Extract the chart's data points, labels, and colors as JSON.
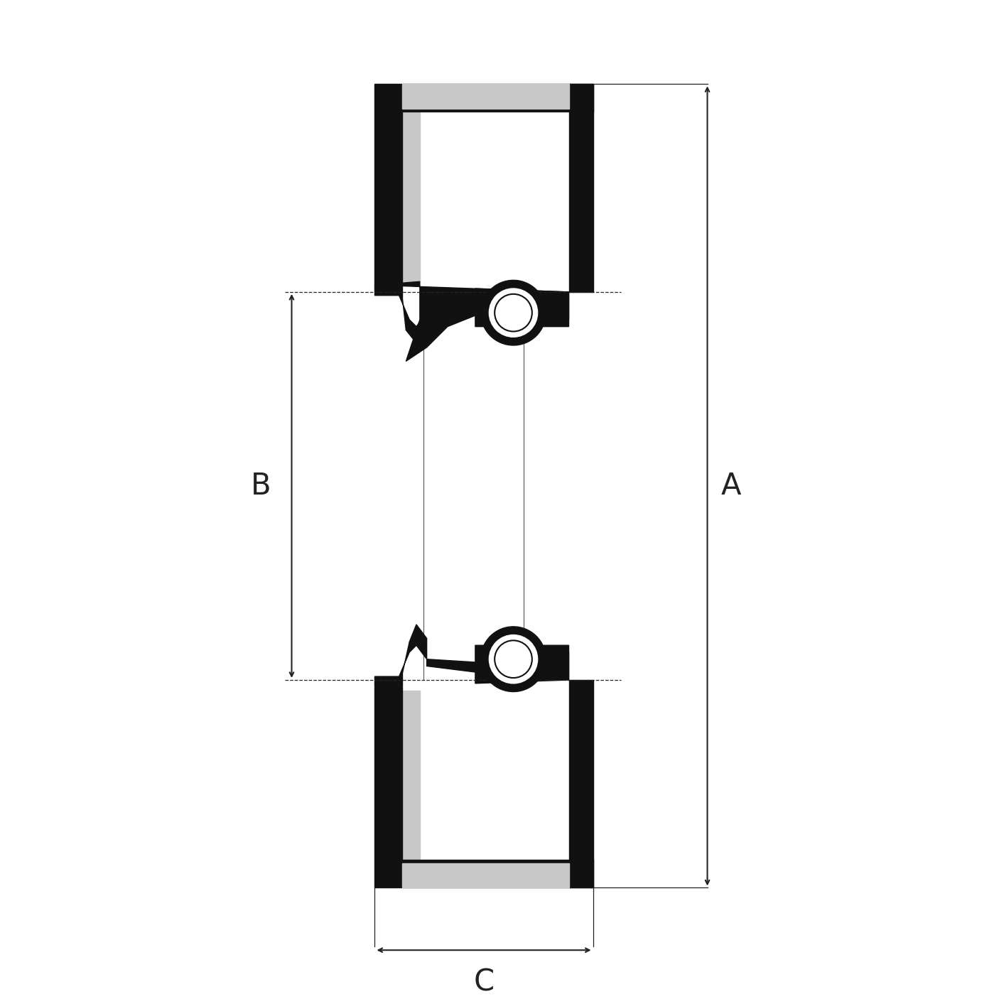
{
  "bg_color": "#ffffff",
  "BLACK": "#111111",
  "GRAY": "#c8c8c8",
  "WHITE": "#ffffff",
  "DIM": "#222222",
  "fig_w": 14.06,
  "fig_h": 14.06,
  "dpi": 100,
  "label_A": "A",
  "label_B": "B",
  "label_C": "C",
  "font_size": 30
}
